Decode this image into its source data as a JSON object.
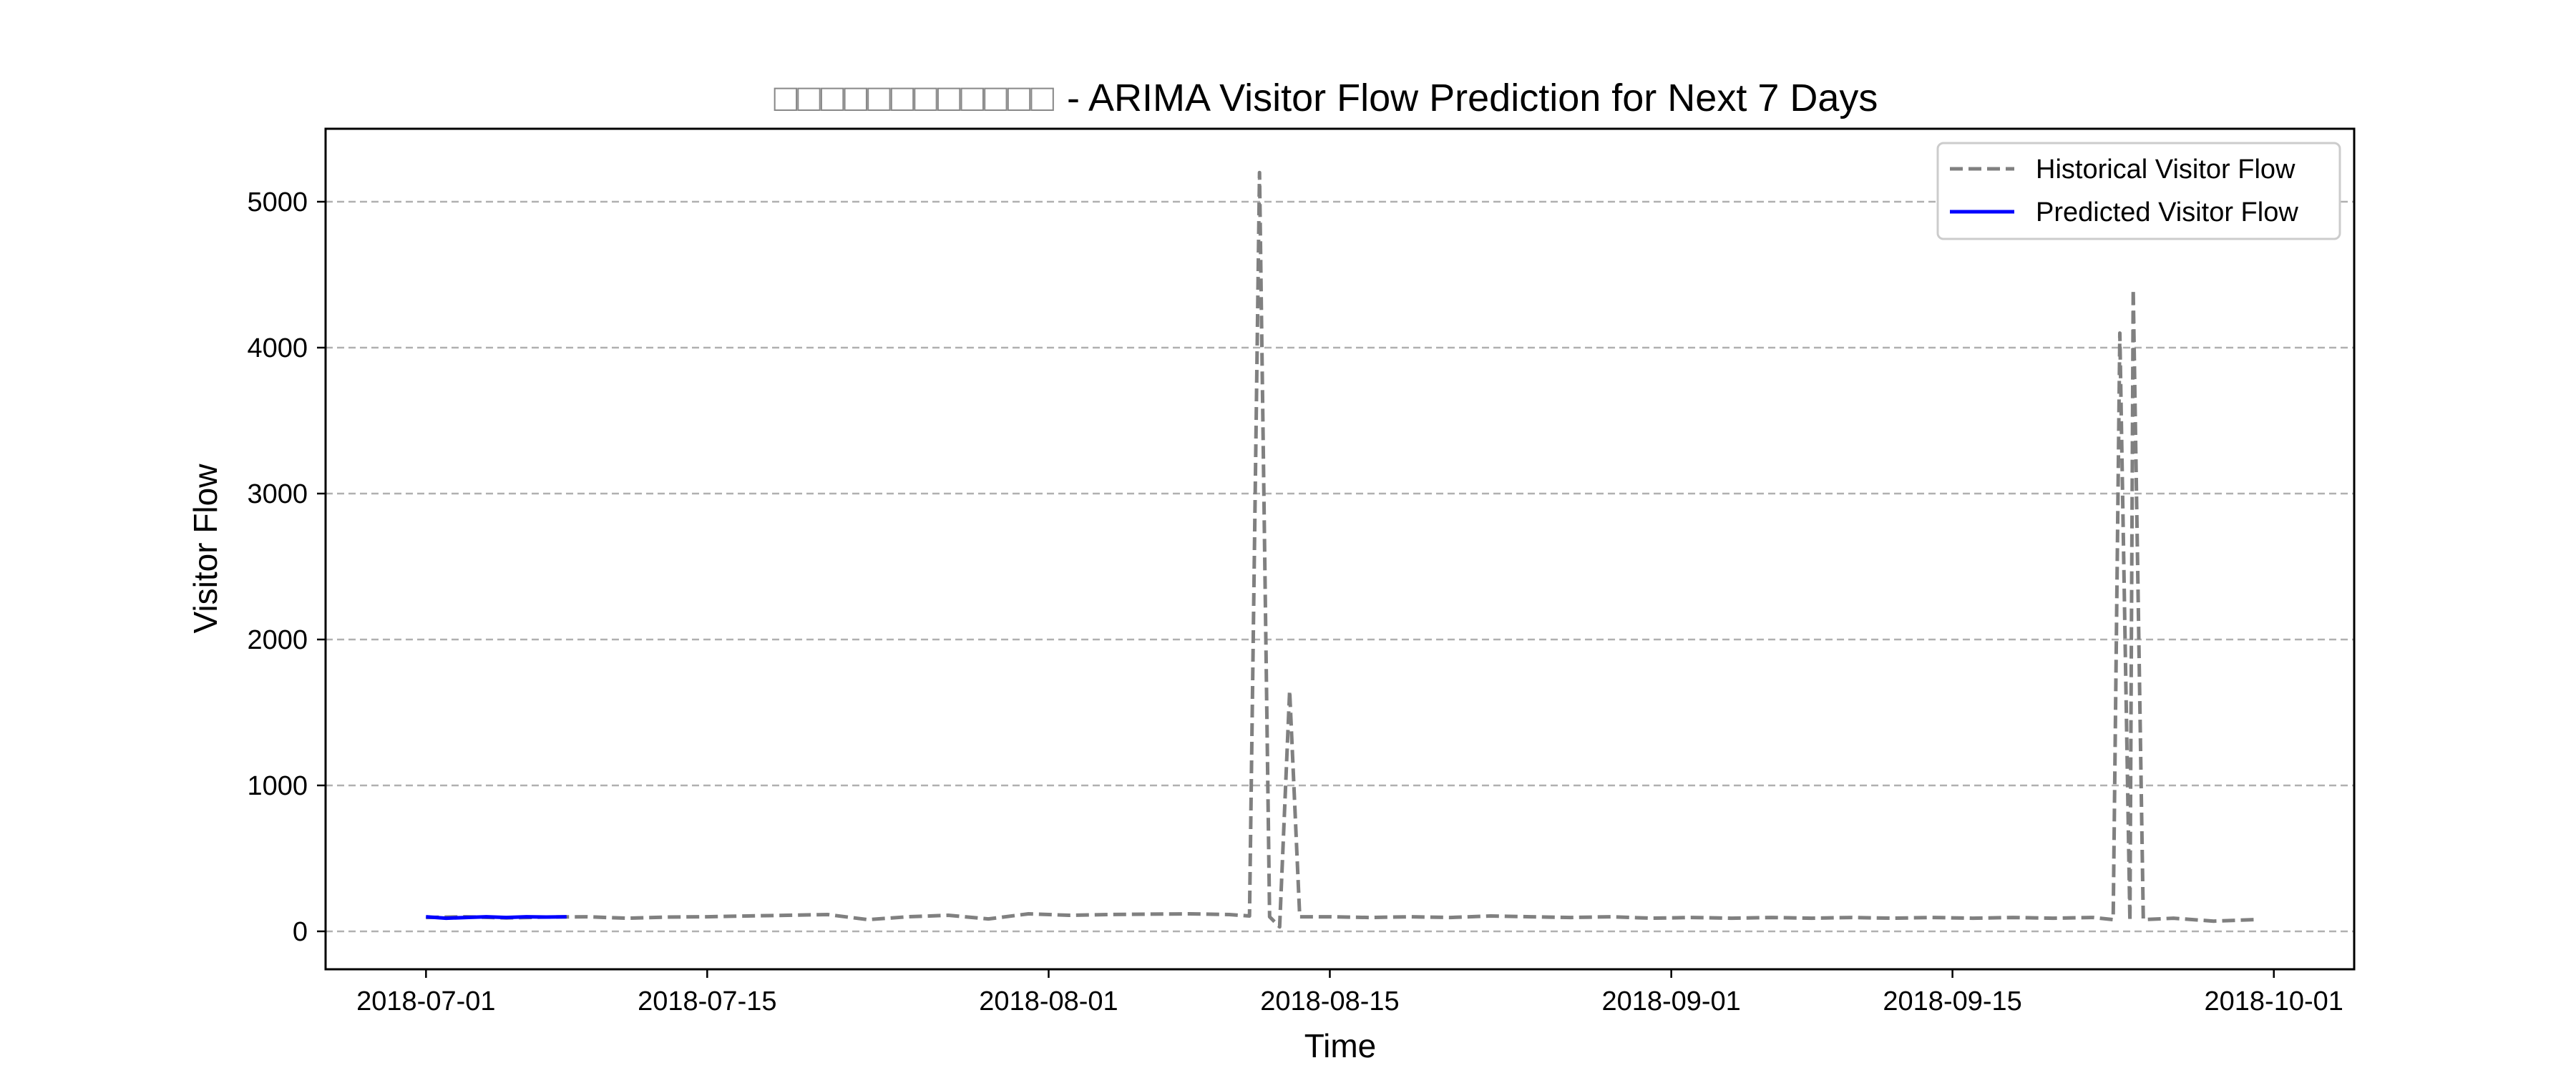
{
  "chart_data": {
    "type": "line",
    "title_prefix": "□□□□□□□□□□□□",
    "title": "- ARIMA Visitor Flow Prediction for Next 7 Days",
    "xlabel": "Time",
    "ylabel": "Visitor Flow",
    "xlim": [
      "2018-06-26",
      "2018-10-05"
    ],
    "ylim": [
      -260,
      5500
    ],
    "x_ticks": [
      "2018-07-01",
      "2018-07-15",
      "2018-08-01",
      "2018-08-15",
      "2018-09-01",
      "2018-09-15",
      "2018-10-01"
    ],
    "y_ticks": [
      0,
      1000,
      2000,
      3000,
      4000,
      5000
    ],
    "grid": "y",
    "legend_position": "top-right",
    "series": [
      {
        "name": "Historical Visitor Flow",
        "style": "dashed",
        "color": "#808080",
        "points": [
          [
            "2018-07-01",
            95
          ],
          [
            "2018-07-03",
            100
          ],
          [
            "2018-07-05",
            92
          ],
          [
            "2018-07-07",
            98
          ],
          [
            "2018-07-09",
            100
          ],
          [
            "2018-07-11",
            90
          ],
          [
            "2018-07-13",
            98
          ],
          [
            "2018-07-15",
            100
          ],
          [
            "2018-07-17",
            105
          ],
          [
            "2018-07-19",
            110
          ],
          [
            "2018-07-21",
            115
          ],
          [
            "2018-07-23",
            80
          ],
          [
            "2018-07-25",
            100
          ],
          [
            "2018-07-27",
            110
          ],
          [
            "2018-07-29",
            85
          ],
          [
            "2018-07-31",
            120
          ],
          [
            "2018-08-02",
            110
          ],
          [
            "2018-08-04",
            115
          ],
          [
            "2018-08-06",
            118
          ],
          [
            "2018-08-08",
            120
          ],
          [
            "2018-08-10",
            115
          ],
          [
            "2018-08-11",
            105
          ],
          [
            "2018-08-11 12:00",
            5200
          ],
          [
            "2018-08-12",
            100
          ],
          [
            "2018-08-12 12:00",
            30
          ],
          [
            "2018-08-13",
            1650
          ],
          [
            "2018-08-13 12:00",
            100
          ],
          [
            "2018-08-15",
            100
          ],
          [
            "2018-08-17",
            95
          ],
          [
            "2018-08-19",
            100
          ],
          [
            "2018-08-21",
            95
          ],
          [
            "2018-08-23",
            105
          ],
          [
            "2018-08-25",
            100
          ],
          [
            "2018-08-27",
            95
          ],
          [
            "2018-08-29",
            100
          ],
          [
            "2018-08-31",
            90
          ],
          [
            "2018-09-02",
            95
          ],
          [
            "2018-09-04",
            90
          ],
          [
            "2018-09-06",
            95
          ],
          [
            "2018-09-08",
            90
          ],
          [
            "2018-09-10",
            95
          ],
          [
            "2018-09-12",
            90
          ],
          [
            "2018-09-14",
            95
          ],
          [
            "2018-09-16",
            90
          ],
          [
            "2018-09-18",
            95
          ],
          [
            "2018-09-20",
            90
          ],
          [
            "2018-09-22",
            95
          ],
          [
            "2018-09-23",
            80
          ],
          [
            "2018-09-23 08:00",
            4100
          ],
          [
            "2018-09-23 20:00",
            70
          ],
          [
            "2018-09-24",
            4400
          ],
          [
            "2018-09-24 12:00",
            80
          ],
          [
            "2018-09-26",
            90
          ],
          [
            "2018-09-28",
            70
          ],
          [
            "2018-09-30",
            80
          ]
        ]
      },
      {
        "name": "Predicted Visitor Flow",
        "style": "solid",
        "color": "#0000ff",
        "points": [
          [
            "2018-07-01",
            100
          ],
          [
            "2018-07-02",
            90
          ],
          [
            "2018-07-03",
            95
          ],
          [
            "2018-07-04",
            100
          ],
          [
            "2018-07-05",
            95
          ],
          [
            "2018-07-06",
            100
          ],
          [
            "2018-07-07",
            98
          ],
          [
            "2018-07-08",
            100
          ]
        ]
      }
    ]
  }
}
